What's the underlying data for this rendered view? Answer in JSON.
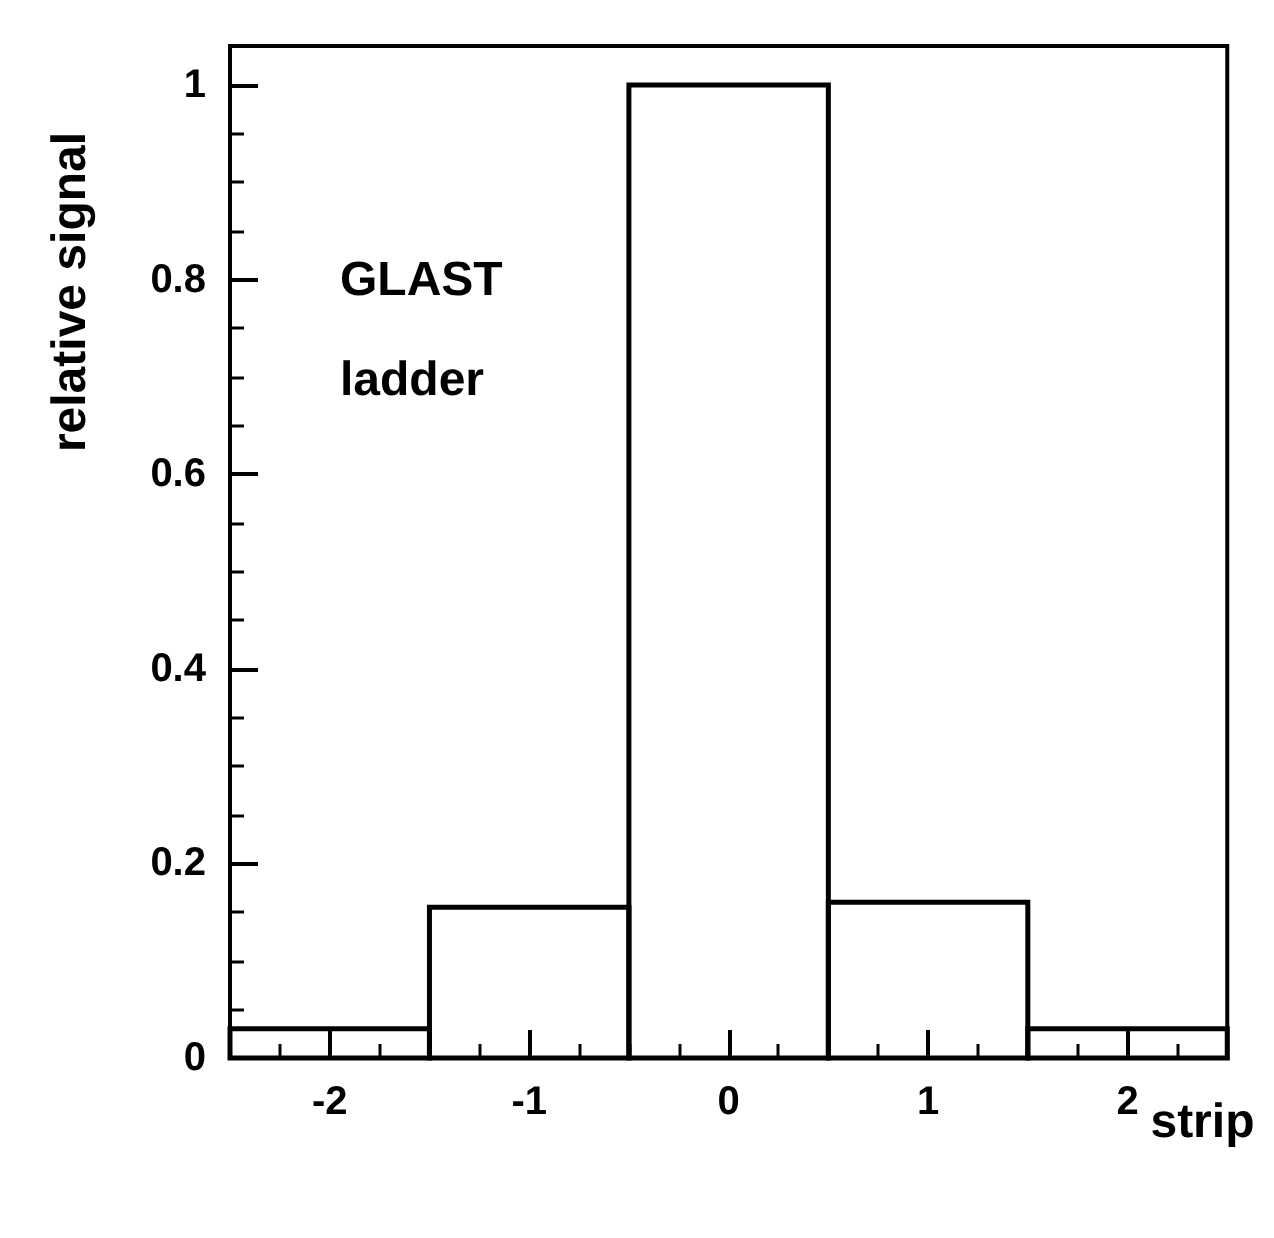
{
  "chart_data": {
    "type": "histogram",
    "xlabel": "strip",
    "ylabel": "relative signal",
    "bins": [
      -2.5,
      -1.5,
      -0.5,
      0.5,
      1.5,
      2.5
    ],
    "values": [
      0.03,
      0.155,
      1.0,
      0.16,
      0.03
    ],
    "color": "#000000",
    "xlim": [
      -2.5,
      2.5
    ],
    "xticks": [
      -2,
      -1,
      0,
      1,
      2
    ],
    "ylim": [
      0,
      1.04
    ],
    "yticks": [
      0,
      0.2,
      0.4,
      0.6,
      0.8,
      1
    ],
    "annotations": [
      "GLAST",
      "ladder"
    ],
    "grid": false
  }
}
